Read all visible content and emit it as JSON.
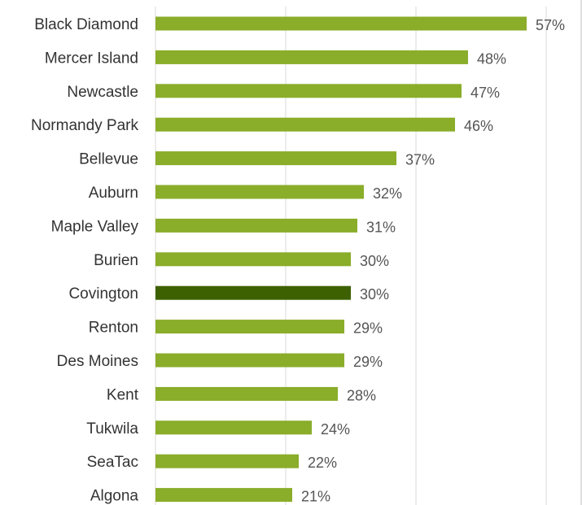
{
  "chart_data": {
    "type": "bar",
    "orientation": "horizontal",
    "categories": [
      "Black Diamond",
      "Mercer Island",
      "Newcastle",
      "Normandy Park",
      "Bellevue",
      "Auburn",
      "Maple Valley",
      "Burien",
      "Covington",
      "Renton",
      "Des Moines",
      "Kent",
      "Tukwila",
      "SeaTac",
      "Algona"
    ],
    "values": [
      57,
      48,
      47,
      46,
      37,
      32,
      31,
      30,
      30,
      29,
      29,
      28,
      24,
      22,
      21
    ],
    "value_labels": [
      "57%",
      "48%",
      "47%",
      "46%",
      "37%",
      "32%",
      "31%",
      "30%",
      "30%",
      "29%",
      "29%",
      "28%",
      "24%",
      "22%",
      "21%"
    ],
    "highlight": "Covington",
    "xlim": [
      0,
      60
    ],
    "grid": true,
    "title": "",
    "xlabel": "",
    "ylabel": "",
    "colors": {
      "bar": "#8aad2a",
      "highlight": "#3d6100"
    }
  }
}
